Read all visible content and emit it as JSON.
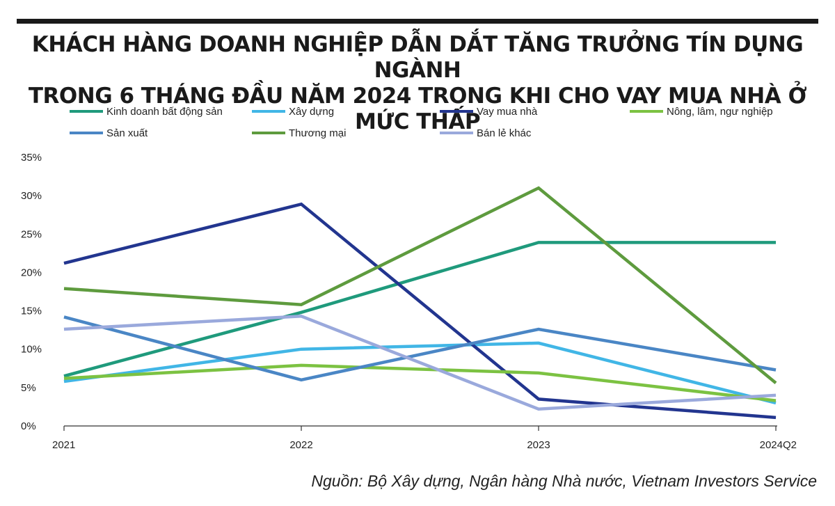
{
  "title_lines": [
    "KHÁCH HÀNG DOANH NGHIỆP DẪN DẮT TĂNG TRƯỞNG TÍN DỤNG NGÀNH",
    "TRONG 6 THÁNG ĐẦU NĂM 2024 TRONG KHI CHO VAY MUA NHÀ Ở MỨC THẤP"
  ],
  "source": "Nguồn: Bộ Xây dựng, Ngân hàng Nhà nước, Vietnam Investors Service",
  "chart_data": {
    "type": "line",
    "categories": [
      "2021",
      "2022",
      "2023",
      "2024Q2"
    ],
    "ylim": [
      0,
      35
    ],
    "yticks": [
      0,
      5,
      10,
      15,
      20,
      25,
      30,
      35
    ],
    "ytick_labels": [
      "0%",
      "5%",
      "10%",
      "15%",
      "20%",
      "25%",
      "30%",
      "35%"
    ],
    "grid": false,
    "legend_position": "top",
    "series": [
      {
        "name": "Kinh doanh bất động sản",
        "color": "#1f9a7c",
        "values": [
          6.5,
          14.8,
          23.9,
          23.9
        ]
      },
      {
        "name": "Xây dựng",
        "color": "#41b6e6",
        "values": [
          5.8,
          10.0,
          10.8,
          3.0
        ]
      },
      {
        "name": "Vay mua nhà",
        "color": "#22358f",
        "values": [
          21.2,
          28.9,
          3.5,
          1.1
        ]
      },
      {
        "name": "Nông, lâm, ngư nghiệp",
        "color": "#7cc242",
        "values": [
          6.2,
          7.9,
          6.9,
          3.3
        ]
      },
      {
        "name": "Sản xuất",
        "color": "#4a86c5",
        "values": [
          14.2,
          6.0,
          12.6,
          7.3
        ]
      },
      {
        "name": "Thương mại",
        "color": "#5e9b3e",
        "values": [
          17.9,
          15.8,
          31.0,
          5.6
        ]
      },
      {
        "name": "Bán lẻ khác",
        "color": "#9aa9dc",
        "values": [
          12.6,
          14.3,
          2.2,
          4.0
        ]
      }
    ]
  }
}
